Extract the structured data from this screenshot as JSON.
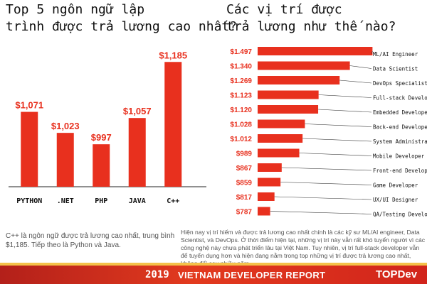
{
  "left_title": "Top 5 ngôn ngữ lập trình được trả lương cao nhất?",
  "right_title": "Các vị trí được trả lương như thế nào?",
  "left_description": "C++ là ngôn ngữ được trả lương cao nhất, trung bình $1,185. Tiếp theo là Python và Java.",
  "right_description": "Hiện nay vị trí hiếm và được trả lương cao nhất chính là các kỹ sư ML/AI engineer, Data Scientist, và DevOps. Ở thời điểm hiện tại, những vị trí này vẫn rất khó tuyển người vì các công nghệ này chưa phát triển lâu tại Việt Nam. Tuy nhiên, vị trí full-stack developer vẫn để tuyển dụng hơn và hiện đang nằm trong top những vị trí được trả lương cao nhất, không đổi sau nhiều năm.",
  "footer": {
    "year": "2019",
    "report": "VIETNAM DEVELOPER REPORT",
    "logo": "TOPDev"
  },
  "colors": {
    "bar": "#e8301e",
    "bar_dark": "#c9261a",
    "accent": "#e8301e"
  },
  "chart_data": [
    {
      "type": "bar",
      "categories": [
        "PYTHON",
        ".NET",
        "PHP",
        "JAVA",
        "C++"
      ],
      "values": [
        1071,
        1023,
        997,
        1057,
        1185
      ],
      "value_labels": [
        "$1,071",
        "$1,023",
        "$997",
        "$1,057",
        "$1,185"
      ],
      "ylim": [
        900,
        1200
      ]
    },
    {
      "type": "bar",
      "orientation": "horizontal",
      "categories": [
        "ML/AI Engineer",
        "Data Scientist",
        "DevOps Specialist",
        "Full-stack Developer",
        "Embedded Developer",
        "Back-end Developer",
        "System Administrator",
        "Mobile Developer",
        "Front-end Developer",
        "Game Developer",
        "UX/UI Designer",
        "QA/Testing Developer"
      ],
      "values": [
        1497,
        1340,
        1269,
        1123,
        1120,
        1028,
        1012,
        989,
        867,
        859,
        817,
        787
      ],
      "value_labels": [
        "$1.497",
        "$1.340",
        "$1.269",
        "$1.123",
        "$1.120",
        "$1.028",
        "$1.012",
        "$989",
        "$867",
        "$859",
        "$817",
        "$787"
      ],
      "xlim": [
        700,
        1500
      ]
    }
  ]
}
